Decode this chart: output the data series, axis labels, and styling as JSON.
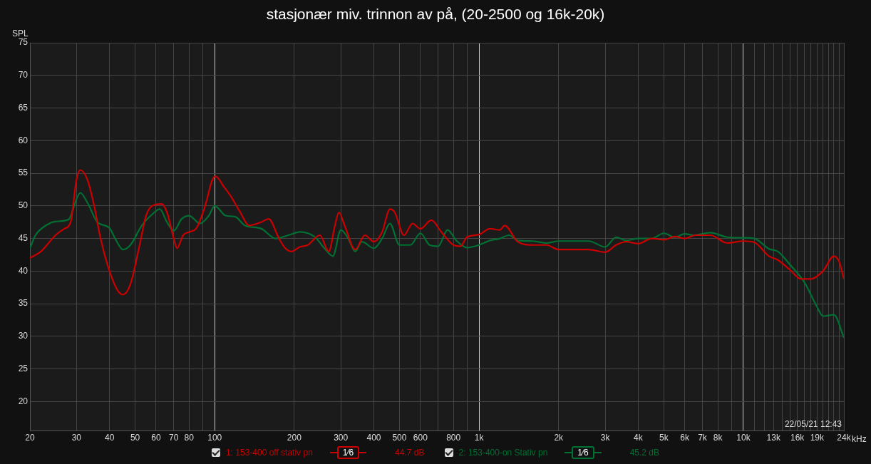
{
  "chart_data": {
    "type": "line",
    "title": "stasjonær miv. trinnon av på, (20-2500 og 16k-20k)",
    "ylabel": "SPL",
    "legend": "bottom",
    "grid": true,
    "log": "x",
    "marker": "none",
    "line_style": "solid",
    "xlim": [
      20,
      24000
    ],
    "ylim": [
      15.5,
      75
    ],
    "xticks": [
      20,
      30,
      40,
      50,
      60,
      70,
      80,
      {
        "value": 90,
        "label": null
      },
      100,
      200,
      300,
      400,
      500,
      600,
      {
        "value": 700,
        "label": null
      },
      800,
      {
        "value": 900,
        "label": null
      },
      {
        "value": 1000,
        "label": "1k"
      },
      {
        "value": 2000,
        "label": "2k"
      },
      {
        "value": 3000,
        "label": "3k"
      },
      {
        "value": 4000,
        "label": "4k"
      },
      {
        "value": 5000,
        "label": "5k"
      },
      {
        "value": 6000,
        "label": "6k"
      },
      {
        "value": 7000,
        "label": "7k"
      },
      {
        "value": 8000,
        "label": "8k"
      },
      {
        "value": 9000,
        "label": null
      },
      {
        "value": 10000,
        "label": "10k"
      },
      {
        "value": 11000,
        "label": null
      },
      {
        "value": 12000,
        "label": null
      },
      {
        "value": 13000,
        "label": "13k"
      },
      {
        "value": 14000,
        "label": null
      },
      {
        "value": 15000,
        "label": null
      },
      {
        "value": 16000,
        "label": "16k"
      },
      {
        "value": 17000,
        "label": null
      },
      {
        "value": 18000,
        "label": null
      },
      {
        "value": 19000,
        "label": "19k"
      },
      {
        "value": 20000,
        "label": null
      },
      {
        "value": 21000,
        "label": null
      },
      {
        "value": 22000,
        "label": null
      },
      {
        "value": 23000,
        "label": null
      },
      {
        "value": 24000,
        "label": "24k"
      }
    ],
    "xlabel": "kHz",
    "yticks": [
      20,
      25,
      30,
      35,
      40,
      45,
      50,
      55,
      60,
      65,
      70,
      75
    ],
    "annotations": [
      "22/05/21 12:43",
      "1⁄6",
      "44.7 dB",
      "1⁄6",
      "45.2 dB"
    ],
    "series": [
      {
        "name": "1: 153-400 off stativ pn",
        "color": "#cc0000",
        "x": [
          20,
          22,
          25,
          27,
          28.5,
          30,
          31,
          33,
          35,
          37,
          40,
          43,
          45,
          48,
          52,
          55,
          58,
          63,
          66,
          70,
          72,
          76,
          80,
          85,
          92,
          98,
          101,
          108,
          115,
          125,
          135,
          150,
          160,
          175,
          185,
          195,
          210,
          225,
          250,
          270,
          285,
          295,
          310,
          340,
          370,
          400,
          430,
          460,
          480,
          520,
          560,
          600,
          660,
          720,
          800,
          850,
          900,
          1000,
          1100,
          1200,
          1250,
          1400,
          1600,
          1800,
          2000,
          2300,
          2600,
          3000,
          3300,
          3600,
          4000,
          4500,
          5000,
          5500,
          6000,
          6600,
          7500,
          8700,
          10000,
          11000,
          12500,
          13500,
          15000,
          16500,
          18000,
          20000,
          22000,
          23000,
          24000
        ],
        "values": [
          42,
          43,
          45.5,
          46.5,
          47.5,
          54,
          55.5,
          54,
          50,
          45,
          40,
          37,
          36.4,
          38,
          44,
          48.5,
          50,
          50.3,
          49,
          45,
          43.5,
          45.5,
          46,
          46.5,
          50,
          54,
          54.5,
          53,
          51.5,
          49,
          47,
          47.5,
          48,
          45,
          43.5,
          43,
          43.7,
          44,
          45.5,
          43,
          47,
          49,
          47,
          43.3,
          45.5,
          44.5,
          46,
          49.5,
          49,
          45.5,
          47.3,
          46.5,
          47.8,
          46,
          44,
          43.8,
          45.2,
          45.6,
          46.5,
          46.3,
          47,
          44.5,
          44,
          44,
          43.3,
          43.3,
          43.3,
          42.9,
          44,
          44.5,
          44.2,
          45,
          44.8,
          45.3,
          45,
          45.5,
          45.5,
          44.3,
          44.6,
          44.4,
          42.3,
          41.7,
          40.2,
          38.8,
          38.8,
          40,
          42.3,
          41.5,
          38.8
        ]
      },
      {
        "name": "2: 153-400-on Stativ pn",
        "color": "#007033",
        "x": [
          20,
          21,
          23,
          25,
          28,
          30,
          31,
          33,
          36,
          40,
          42,
          45,
          48,
          53,
          58,
          62,
          66,
          70,
          75,
          80,
          88,
          95,
          100,
          110,
          120,
          130,
          150,
          170,
          190,
          210,
          240,
          260,
          280,
          300,
          320,
          340,
          360,
          400,
          430,
          460,
          500,
          550,
          600,
          650,
          700,
          760,
          820,
          900,
          1000,
          1100,
          1200,
          1300,
          1400,
          1600,
          1800,
          2000,
          2300,
          2600,
          3000,
          3300,
          3600,
          4000,
          4500,
          5000,
          5500,
          6000,
          6500,
          7500,
          8700,
          10000,
          11000,
          12500,
          13500,
          15000,
          17000,
          19000,
          20000,
          22000,
          24000
        ],
        "values": [
          43.5,
          45.5,
          47,
          47.6,
          47.9,
          51,
          52,
          50.5,
          47.5,
          46.6,
          45,
          43.3,
          44,
          47,
          48.7,
          49.5,
          47.5,
          46.2,
          48,
          48.5,
          47.3,
          48.5,
          50,
          48.5,
          48.3,
          47,
          46.5,
          45,
          45.5,
          46,
          45.2,
          43.5,
          42.3,
          46.3,
          45,
          43,
          44.5,
          43.5,
          45,
          47.3,
          44,
          44,
          45.8,
          44,
          43.8,
          46.3,
          44.7,
          43.6,
          44,
          44.7,
          45,
          45.5,
          44.7,
          44.6,
          44.3,
          44.6,
          44.6,
          44.6,
          43.7,
          45.2,
          44.7,
          45,
          45,
          45.8,
          45.2,
          45.7,
          45.5,
          45.9,
          45.2,
          45.1,
          45,
          43.4,
          43,
          41,
          38.3,
          34.5,
          33.1,
          33.3,
          29.8
        ]
      }
    ]
  }
}
